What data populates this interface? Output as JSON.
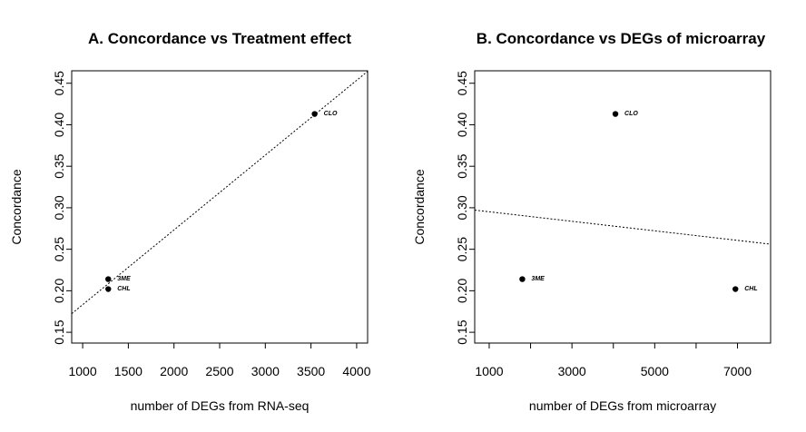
{
  "chart_data": [
    {
      "type": "scatter",
      "title": "A. Concordance vs Treatment effect",
      "xlabel": "number of DEGs from RNA-seq",
      "ylabel": "Concordance",
      "xlim": [
        880,
        4120
      ],
      "ylim": [
        0.137,
        0.465
      ],
      "x_ticks": [
        1000,
        1500,
        2000,
        2500,
        3000,
        3500,
        4000
      ],
      "x_tick_labels": [
        "1000",
        "1500",
        "2000",
        "2500",
        "3000",
        "3500",
        "4000"
      ],
      "y_ticks": [
        0.15,
        0.2,
        0.25,
        0.3,
        0.35,
        0.4,
        0.45
      ],
      "y_tick_labels": [
        "0.15",
        "0.20",
        "0.25",
        "0.30",
        "0.35",
        "0.40",
        "0.45"
      ],
      "points": [
        {
          "label": "3ME",
          "x": 1280,
          "y": 0.214
        },
        {
          "label": "CHL",
          "x": 1280,
          "y": 0.202
        },
        {
          "label": "CLO",
          "x": 3540,
          "y": 0.413
        }
      ],
      "fit_line": {
        "style": "dotted",
        "intercept": 0.0931,
        "slope": 9.01e-05
      },
      "grid": false
    },
    {
      "type": "scatter",
      "title": "B. Concordance vs DEGs of microarray",
      "xlabel": "number of DEGs from microarray",
      "ylabel": "Concordance",
      "xlim": [
        650,
        7800
      ],
      "ylim": [
        0.137,
        0.465
      ],
      "x_ticks": [
        1000,
        2000,
        3000,
        4000,
        5000,
        6000,
        7000
      ],
      "x_tick_labels": [
        "1000",
        "",
        "3000",
        "",
        "5000",
        "",
        "7000"
      ],
      "y_ticks": [
        0.15,
        0.2,
        0.25,
        0.3,
        0.35,
        0.4,
        0.45
      ],
      "y_tick_labels": [
        "0.15",
        "0.20",
        "0.25",
        "0.30",
        "0.35",
        "0.40",
        "0.45"
      ],
      "points": [
        {
          "label": "CLO",
          "x": 4050,
          "y": 0.413
        },
        {
          "label": "3ME",
          "x": 1800,
          "y": 0.214
        },
        {
          "label": "CHL",
          "x": 6950,
          "y": 0.202
        }
      ],
      "fit_line": {
        "style": "dotted",
        "intercept": 0.3009,
        "slope": -5.74e-06
      },
      "grid": false
    }
  ]
}
